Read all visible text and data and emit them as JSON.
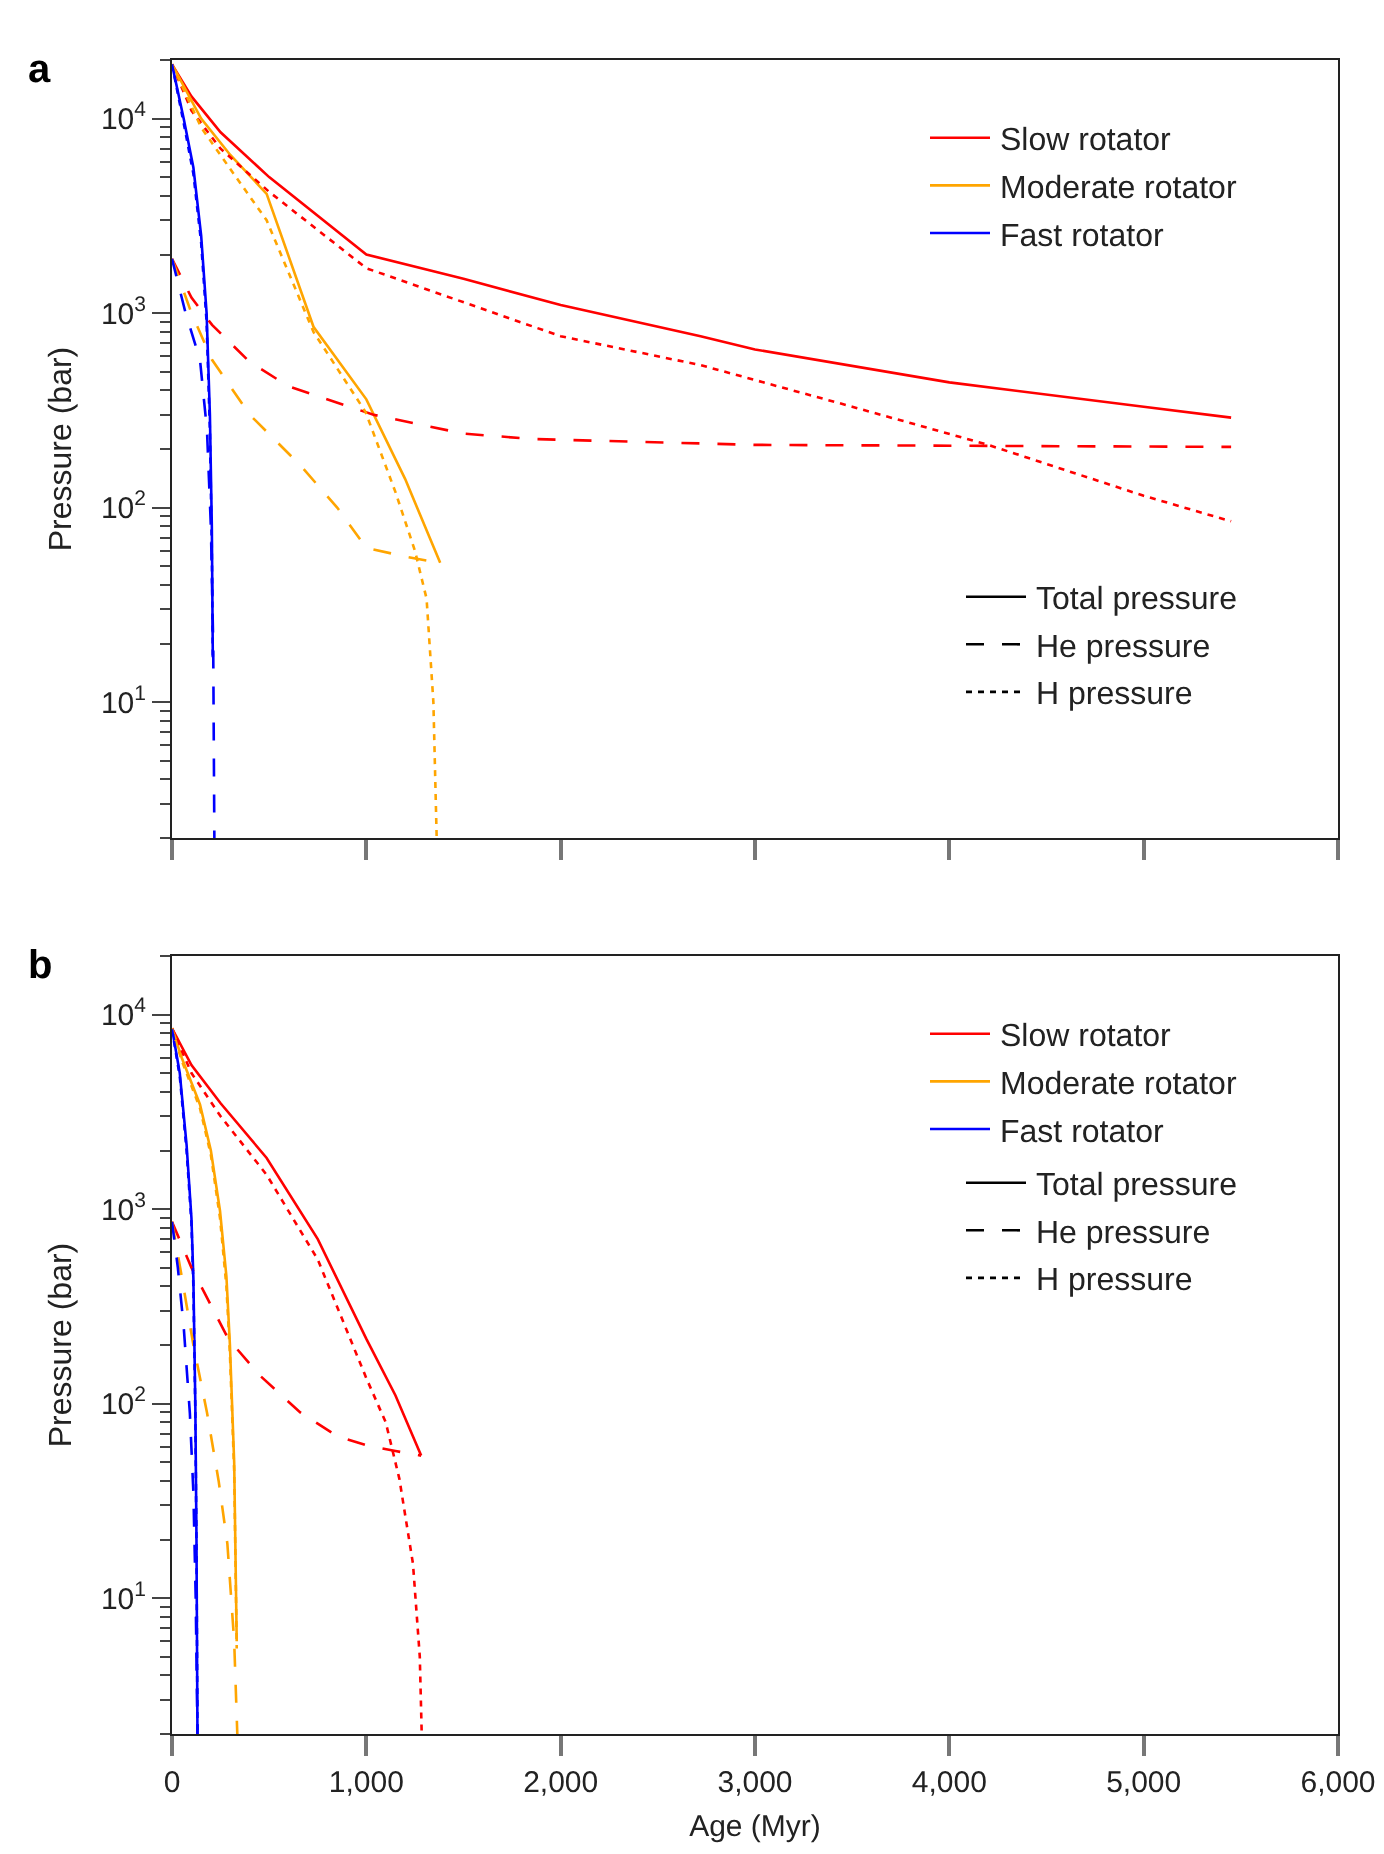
{
  "chart_data": [
    {
      "type": "line",
      "title": "a",
      "ylabel": "Pressure (bar)",
      "log": "y",
      "legend": "top right",
      "tick_labels": "y",
      "xlim": [
        0,
        6000
      ],
      "xticks": [
        0,
        1000,
        2000,
        3000,
        4000,
        5000,
        6000
      ],
      "ylim": [
        2,
        20000
      ],
      "yticks": [
        {
          "value": 10,
          "label": "10$^{1}$"
        },
        {
          "value": 100,
          "label": "10$^{2}$"
        },
        {
          "value": 1000,
          "label": "10$^{3}$"
        },
        {
          "value": 10000,
          "label": "10$^{4}$"
        }
      ],
      "series": [
        {
          "name": "Slow rotator",
          "color": "#ff0000",
          "line_style": "solid",
          "x": [
            0,
            100,
            250,
            500,
            1000,
            1500,
            2000,
            2720,
            3000,
            4000,
            5000,
            5450
          ],
          "values": [
            19000,
            13000,
            8500,
            5000,
            2000,
            1500,
            1100,
            760,
            650,
            440,
            330,
            290
          ]
        },
        {
          "name": "Moderate rotator",
          "color": "#ffa500",
          "line_style": "solid",
          "x": [
            0,
            150,
            300,
            487,
            728,
            1000,
            1200,
            1380
          ],
          "values": [
            19000,
            10000,
            6500,
            4100,
            850,
            360,
            140,
            52
          ]
        },
        {
          "name": "Fast rotator",
          "color": "#0000ff",
          "line_style": "solid",
          "x": [
            0,
            60,
            110,
            150,
            178,
            195,
            205,
            210
          ],
          "values": [
            19000,
            10000,
            5600,
            2500,
            1000,
            300,
            80,
            17
          ]
        },
        {
          "color": "#ff0000",
          "line_style": "dashed",
          "x": [
            0,
            100,
            206,
            400,
            600,
            1037,
            1500,
            1860,
            3000,
            5450
          ],
          "values": [
            1900,
            1200,
            870,
            560,
            420,
            300,
            240,
            225,
            210,
            205
          ]
        },
        {
          "color": "#ffa500",
          "line_style": "dashed",
          "x": [
            0,
            100,
            206,
            400,
            660,
            850,
            1000,
            1200,
            1370
          ],
          "values": [
            1900,
            1000,
            575,
            300,
            165,
            100,
            62,
            56,
            52
          ]
        },
        {
          "color": "#0000ff",
          "line_style": "dashed",
          "x": [
            0,
            70,
            144,
            180,
            200,
            212,
            218
          ],
          "values": [
            1900,
            1000,
            575,
            250,
            80,
            20,
            2
          ]
        },
        {
          "color": "#ff0000",
          "line_style": "dotted",
          "x": [
            0,
            100,
            250,
            500,
            1000,
            2000,
            2720,
            3500,
            4200,
            5000,
            5450
          ],
          "values": [
            19000,
            11000,
            7000,
            4200,
            1700,
            760,
            540,
            330,
            210,
            115,
            85
          ]
        },
        {
          "color": "#ffa500",
          "line_style": "dotted",
          "x": [
            0,
            150,
            300,
            487,
            728,
            996,
            1150,
            1250,
            1310,
            1345,
            1362
          ],
          "values": [
            19000,
            9000,
            5500,
            3000,
            800,
            310,
            120,
            60,
            34,
            10,
            2
          ]
        },
        {
          "color": "#0000ff",
          "line_style": "dotted",
          "x": [
            0,
            60,
            110,
            150,
            178,
            195,
            205,
            210
          ],
          "values": [
            19000,
            9500,
            5200,
            2300,
            900,
            250,
            60,
            17
          ]
        },
        {
          "name": "Total pressure",
          "color": "#000000",
          "line_style": "solid"
        },
        {
          "name": "He pressure",
          "color": "#000000",
          "line_style": "dashed"
        },
        {
          "name": "H pressure",
          "color": "#000000",
          "line_style": "dotted"
        }
      ]
    },
    {
      "type": "line",
      "title": "b",
      "ylabel": "Pressure (bar)",
      "xlabel": "Age (Myr)",
      "log": "y",
      "legend": "top right",
      "xlim": [
        0,
        6000
      ],
      "xticks": [
        0,
        {
          "value": 1000,
          "label": "1,000"
        },
        {
          "value": 2000,
          "label": "2,000"
        },
        {
          "value": 3000,
          "label": "3,000"
        },
        {
          "value": 4000,
          "label": "4,000"
        },
        {
          "value": 5000,
          "label": "5,000"
        },
        {
          "value": 6000,
          "label": "6,000"
        }
      ],
      "ylim": [
        2,
        20000
      ],
      "yticks": [
        {
          "value": 10,
          "label": "10$^{1}$"
        },
        {
          "value": 100,
          "label": "10$^{2}$"
        },
        {
          "value": 1000,
          "label": "10$^{3}$"
        },
        {
          "value": 10000,
          "label": "10$^{4}$"
        }
      ],
      "series": [
        {
          "name": "Slow rotator",
          "color": "#ff0000",
          "line_style": "solid",
          "x": [
            0,
            100,
            250,
            487,
            750,
            1000,
            1150,
            1282
          ],
          "values": [
            8500,
            5500,
            3500,
            1830,
            700,
            215,
            110,
            54
          ]
        },
        {
          "name": "Moderate rotator",
          "color": "#ffa500",
          "line_style": "solid",
          "x": [
            0,
            50,
            144,
            200,
            247,
            280,
            298,
            320,
            333
          ],
          "values": [
            8500,
            6000,
            3450,
            2000,
            980,
            450,
            200,
            50,
            6
          ]
        },
        {
          "name": "Fast rotator",
          "color": "#0000ff",
          "line_style": "solid",
          "x": [
            0,
            40,
            75,
            100,
            110,
            120,
            126,
            131
          ],
          "values": [
            8500,
            5000,
            2140,
            900,
            440,
            100,
            20,
            2
          ]
        },
        {
          "color": "#ff0000",
          "line_style": "dashed",
          "x": [
            0,
            100,
            290,
            450,
            660,
            850,
            1000,
            1150,
            1282
          ],
          "values": [
            860,
            500,
            215,
            140,
            90,
            68,
            61,
            57,
            54
          ]
        },
        {
          "color": "#ffa500",
          "line_style": "dashed",
          "x": [
            0,
            50,
            110,
            180,
            240,
            285,
            320,
            336
          ],
          "values": [
            860,
            450,
            200,
            90,
            40,
            19,
            6,
            2
          ]
        },
        {
          "color": "#0000ff",
          "line_style": "dashed",
          "x": [
            0,
            30,
            60,
            92,
            110,
            122,
            131
          ],
          "values": [
            860,
            500,
            250,
            89,
            35,
            10,
            2
          ]
        },
        {
          "color": "#ff0000",
          "line_style": "dotted",
          "x": [
            0,
            100,
            250,
            487,
            750,
            1000,
            1100,
            1170,
            1240,
            1275,
            1285
          ],
          "values": [
            8500,
            5000,
            3000,
            1500,
            550,
            135,
            80,
            41,
            15,
            5,
            2
          ]
        },
        {
          "color": "#ffa500",
          "line_style": "dotted",
          "x": [
            0,
            50,
            144,
            200,
            247,
            280,
            298,
            320,
            333
          ],
          "values": [
            8500,
            5800,
            3300,
            1900,
            900,
            400,
            180,
            45,
            5.5
          ]
        },
        {
          "color": "#0000ff",
          "line_style": "dotted",
          "x": [
            0,
            40,
            75,
            100,
            110,
            120,
            126,
            131
          ],
          "values": [
            8400,
            4800,
            2000,
            850,
            400,
            90,
            18,
            2
          ]
        },
        {
          "name": "Total pressure",
          "color": "#000000",
          "line_style": "solid"
        },
        {
          "name": "He pressure",
          "color": "#000000",
          "line_style": "dashed"
        },
        {
          "name": "H pressure",
          "color": "#000000",
          "line_style": "dotted"
        }
      ]
    }
  ]
}
